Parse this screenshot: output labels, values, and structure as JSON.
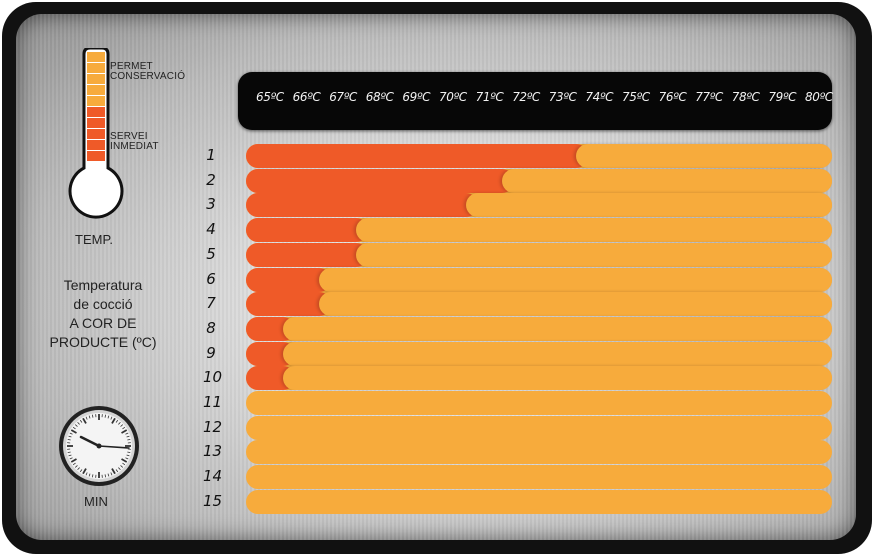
{
  "thermometer": {
    "label_permet_line1": "PERMET",
    "label_permet_line2": "CONSERVACIÓ",
    "label_servei_line1": "SERVEI",
    "label_servei_line2": "INMEDIAT",
    "temp_label": "TEMP.",
    "colors": {
      "conservacio": "#f7ab3c",
      "servei": "#ef5a28"
    }
  },
  "sidebar": {
    "title_line1": "Temperatura",
    "title_line2": "de cocció",
    "title_line3": "A COR DE",
    "title_line4": "PRODUCTE (ºC)",
    "clock_icon": "wall-clock-icon",
    "min_label": "MIN"
  },
  "chart_data": {
    "type": "bar",
    "orientation": "horizontal",
    "x_categories": [
      "65ºC",
      "66ºC",
      "67ºC",
      "68ºC",
      "69ºC",
      "70ºC",
      "71ºC",
      "72ºC",
      "73ºC",
      "74ºC",
      "75ºC",
      "76ºC",
      "77ºC",
      "78ºC",
      "79ºC",
      "80ºC"
    ],
    "xlim": [
      65,
      81
    ],
    "row_labels": [
      "1",
      "2",
      "3",
      "4",
      "5",
      "6",
      "7",
      "8",
      "9",
      "10",
      "11",
      "12",
      "13",
      "14",
      "15"
    ],
    "series": [
      {
        "values": [
          74,
          72,
          71,
          68,
          68,
          67,
          67,
          66,
          66,
          66,
          65,
          65,
          65,
          65,
          65
        ]
      },
      {
        "values": [
          81,
          81,
          81,
          81,
          81,
          81,
          81,
          81,
          81,
          81,
          81,
          81,
          81,
          81,
          81
        ]
      }
    ],
    "colors": [
      "#ef5a28",
      "#f7ab3c"
    ]
  }
}
